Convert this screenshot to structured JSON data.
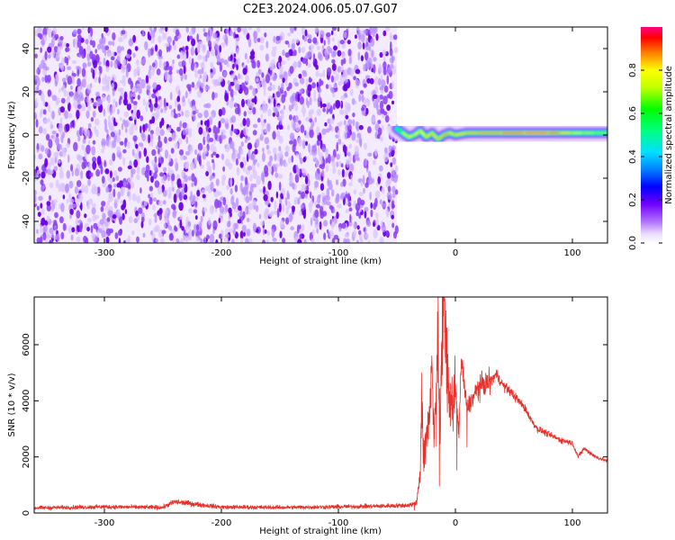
{
  "title": "C2E3.2024.006.05.07.G07",
  "colors": {
    "line_series": "#e8312a",
    "spectrogram_base": "#7a1fe6"
  },
  "chart_data": [
    {
      "type": "heatmap",
      "title": "C2E3.2024.006.05.07.G07",
      "xlabel": "Height of straight line (km)",
      "ylabel": "Frequency (Hz)",
      "xlim": [
        -360,
        130
      ],
      "ylim": [
        -50,
        50
      ],
      "xticks": [
        -300,
        -200,
        -100,
        0,
        100
      ],
      "yticks": [
        -40,
        -20,
        0,
        20,
        40
      ],
      "noise_region_x": [
        -360,
        -50
      ],
      "signal_ridge": {
        "x": [
          -50,
          -45,
          -40,
          -35,
          -30,
          -25,
          -20,
          -15,
          -10,
          -5,
          0,
          10,
          20,
          40,
          60,
          80,
          90,
          100,
          110,
          120,
          130
        ],
        "frequency": [
          3,
          1,
          -1,
          0,
          2,
          -1,
          1,
          -2,
          0,
          1,
          0,
          1,
          1,
          1,
          1,
          1,
          1,
          1,
          1,
          1,
          1
        ],
        "amplitude": [
          0.55,
          0.7,
          0.8,
          0.75,
          0.8,
          0.8,
          0.85,
          0.8,
          0.9,
          0.85,
          0.8,
          0.85,
          0.85,
          0.9,
          0.95,
          0.95,
          0.9,
          0.75,
          0.7,
          0.7,
          0.65
        ]
      },
      "grid": false,
      "colorbar": {
        "label": "Normalized spectral amplitude",
        "range": [
          0,
          1
        ],
        "ticks": [
          "0.0",
          "0.2",
          "0.4",
          "0.6",
          "0.8"
        ],
        "tick_values": [
          0.0,
          0.2,
          0.4,
          0.6,
          0.8
        ]
      }
    },
    {
      "type": "line",
      "xlabel": "Height of straight line (km)",
      "ylabel": "SNR (10 * v/v)",
      "xlim": [
        -360,
        130
      ],
      "ylim": [
        0,
        7700
      ],
      "xticks": [
        -300,
        -200,
        -100,
        0,
        100
      ],
      "yticks": [
        0,
        2000,
        4000,
        6000
      ],
      "grid": false,
      "series": [
        {
          "x": [
            -360,
            -300,
            -250,
            -240,
            -200,
            -150,
            -100,
            -60,
            -40,
            -33,
            -30,
            -29,
            -27,
            -24,
            -20,
            -18,
            -15,
            -13,
            -10,
            -5,
            0,
            3,
            5,
            10,
            20,
            30,
            35,
            40,
            50,
            60,
            65,
            70,
            80,
            90,
            100,
            105,
            110,
            120,
            130
          ],
          "values": [
            180,
            220,
            200,
            400,
            210,
            200,
            220,
            250,
            280,
            380,
            1400,
            4500,
            1800,
            2800,
            5200,
            2500,
            6100,
            2900,
            7600,
            3600,
            4500,
            2800,
            5500,
            3700,
            4500,
            4700,
            4950,
            4600,
            4200,
            3700,
            3300,
            3000,
            2800,
            2600,
            2500,
            2000,
            2300,
            2000,
            1850
          ]
        }
      ]
    }
  ]
}
